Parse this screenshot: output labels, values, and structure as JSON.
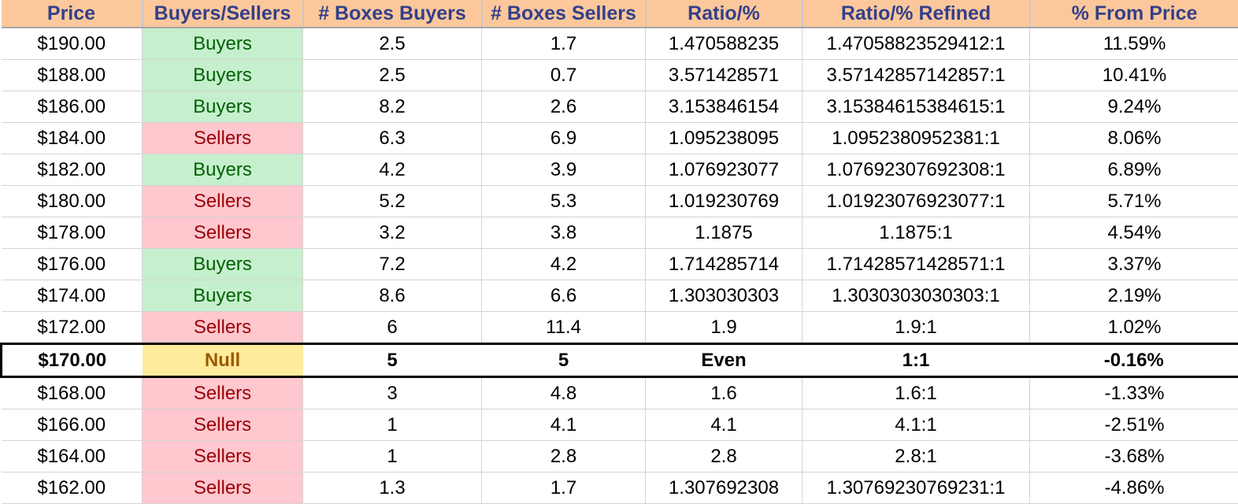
{
  "sheet": {
    "headers": [
      "Price",
      "Buyers/Sellers",
      "# Boxes Buyers",
      "# Boxes Sellers",
      "Ratio/%",
      "Ratio/% Refined",
      "% From Price"
    ],
    "rows": [
      {
        "price": "$190.00",
        "side": "Buyers",
        "boxes_buyers": "2.5",
        "boxes_sellers": "1.7",
        "ratio": "1.470588235",
        "ratio_refined": "1.47058823529412:1",
        "from_price": "11.59%"
      },
      {
        "price": "$188.00",
        "side": "Buyers",
        "boxes_buyers": "2.5",
        "boxes_sellers": "0.7",
        "ratio": "3.571428571",
        "ratio_refined": "3.57142857142857:1",
        "from_price": "10.41%"
      },
      {
        "price": "$186.00",
        "side": "Buyers",
        "boxes_buyers": "8.2",
        "boxes_sellers": "2.6",
        "ratio": "3.153846154",
        "ratio_refined": "3.15384615384615:1",
        "from_price": "9.24%"
      },
      {
        "price": "$184.00",
        "side": "Sellers",
        "boxes_buyers": "6.3",
        "boxes_sellers": "6.9",
        "ratio": "1.095238095",
        "ratio_refined": "1.0952380952381:1",
        "from_price": "8.06%"
      },
      {
        "price": "$182.00",
        "side": "Buyers",
        "boxes_buyers": "4.2",
        "boxes_sellers": "3.9",
        "ratio": "1.076923077",
        "ratio_refined": "1.07692307692308:1",
        "from_price": "6.89%"
      },
      {
        "price": "$180.00",
        "side": "Sellers",
        "boxes_buyers": "5.2",
        "boxes_sellers": "5.3",
        "ratio": "1.019230769",
        "ratio_refined": "1.01923076923077:1",
        "from_price": "5.71%"
      },
      {
        "price": "$178.00",
        "side": "Sellers",
        "boxes_buyers": "3.2",
        "boxes_sellers": "3.8",
        "ratio": "1.1875",
        "ratio_refined": "1.1875:1",
        "from_price": "4.54%"
      },
      {
        "price": "$176.00",
        "side": "Buyers",
        "boxes_buyers": "7.2",
        "boxes_sellers": "4.2",
        "ratio": "1.714285714",
        "ratio_refined": "1.71428571428571:1",
        "from_price": "3.37%"
      },
      {
        "price": "$174.00",
        "side": "Buyers",
        "boxes_buyers": "8.6",
        "boxes_sellers": "6.6",
        "ratio": "1.303030303",
        "ratio_refined": "1.3030303030303:1",
        "from_price": "2.19%"
      },
      {
        "price": "$172.00",
        "side": "Sellers",
        "boxes_buyers": "6",
        "boxes_sellers": "11.4",
        "ratio": "1.9",
        "ratio_refined": "1.9:1",
        "from_price": "1.02%"
      },
      {
        "price": "$170.00",
        "side": "Null",
        "boxes_buyers": "5",
        "boxes_sellers": "5",
        "ratio": "Even",
        "ratio_refined": "1:1",
        "from_price": "-0.16%",
        "current": true
      },
      {
        "price": "$168.00",
        "side": "Sellers",
        "boxes_buyers": "3",
        "boxes_sellers": "4.8",
        "ratio": "1.6",
        "ratio_refined": "1.6:1",
        "from_price": "-1.33%"
      },
      {
        "price": "$166.00",
        "side": "Sellers",
        "boxes_buyers": "1",
        "boxes_sellers": "4.1",
        "ratio": "4.1",
        "ratio_refined": "4.1:1",
        "from_price": "-2.51%"
      },
      {
        "price": "$164.00",
        "side": "Sellers",
        "boxes_buyers": "1",
        "boxes_sellers": "2.8",
        "ratio": "2.8",
        "ratio_refined": "2.8:1",
        "from_price": "-3.68%"
      },
      {
        "price": "$162.00",
        "side": "Sellers",
        "boxes_buyers": "1.3",
        "boxes_sellers": "1.7",
        "ratio": "1.307692308",
        "ratio_refined": "1.30769230769231:1",
        "from_price": "-4.86%"
      }
    ]
  },
  "colors": {
    "header_bg": "#fcc89b",
    "header_text": "#333f8a",
    "buyers_bg": "#c6efce",
    "buyers_text": "#006100",
    "sellers_bg": "#ffc7ce",
    "sellers_text": "#9c0006",
    "null_bg": "#ffeb9c",
    "null_text": "#9c5700"
  }
}
